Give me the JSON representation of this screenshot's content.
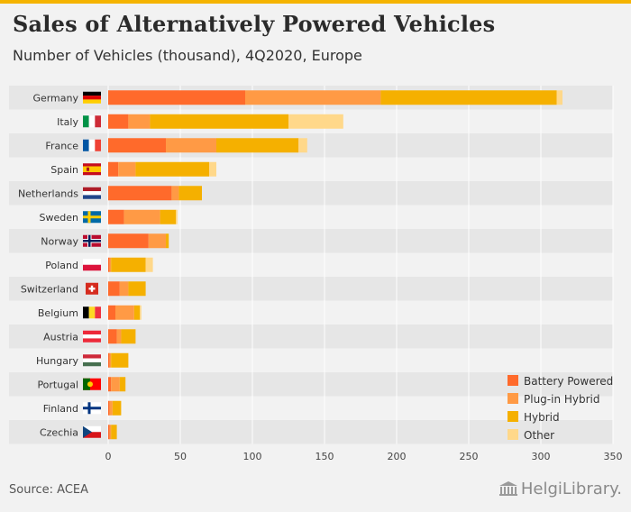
{
  "header": {
    "title": "Sales of Alternatively Powered Vehicles",
    "subtitle": "Number of Vehicles (thousand), 4Q2020, Europe"
  },
  "footer": {
    "source": "Source: ACEA",
    "brand": "HelgiLibrary."
  },
  "chart_data": {
    "type": "bar",
    "orientation": "horizontal",
    "stacked": true,
    "title": "Sales of Alternatively Powered Vehicles",
    "subtitle": "Number of Vehicles (thousand), 4Q2020, Europe",
    "xlim": [
      0,
      350
    ],
    "xticks": [
      0,
      50,
      100,
      150,
      200,
      250,
      300,
      350
    ],
    "grid": true,
    "legend_position": "bottom-right",
    "categories": [
      "Germany",
      "Italy",
      "France",
      "Spain",
      "Netherlands",
      "Sweden",
      "Norway",
      "Poland",
      "Switzerland",
      "Belgium",
      "Austria",
      "Hungary",
      "Portugal",
      "Finland",
      "Czechia"
    ],
    "series": [
      {
        "name": "Battery Powered",
        "color": "#ff6a2b",
        "values": [
          95,
          14,
          40,
          7,
          44,
          11,
          28,
          1,
          8,
          5,
          6,
          1,
          2,
          1,
          1
        ]
      },
      {
        "name": "Plug-in Hybrid",
        "color": "#ff9a45",
        "values": [
          94,
          15,
          35,
          12,
          5,
          25,
          12,
          1,
          6,
          13,
          3,
          1,
          6,
          2,
          1
        ]
      },
      {
        "name": "Hybrid",
        "color": "#f5b000",
        "values": [
          122,
          96,
          57,
          51,
          16,
          11,
          2,
          24,
          12,
          4,
          10,
          12,
          4,
          6,
          4
        ]
      },
      {
        "name": "Other",
        "color": "#ffd88a",
        "values": [
          4,
          38,
          6,
          5,
          0,
          1,
          0,
          5,
          0,
          1,
          0,
          0,
          0,
          0,
          0
        ]
      }
    ],
    "flags": [
      "germany-flag",
      "italy-flag",
      "france-flag",
      "spain-flag",
      "netherlands-flag",
      "sweden-flag",
      "norway-flag",
      "poland-flag",
      "switzerland-flag",
      "belgium-flag",
      "austria-flag",
      "hungary-flag",
      "portugal-flag",
      "finland-flag",
      "czechia-flag"
    ]
  }
}
